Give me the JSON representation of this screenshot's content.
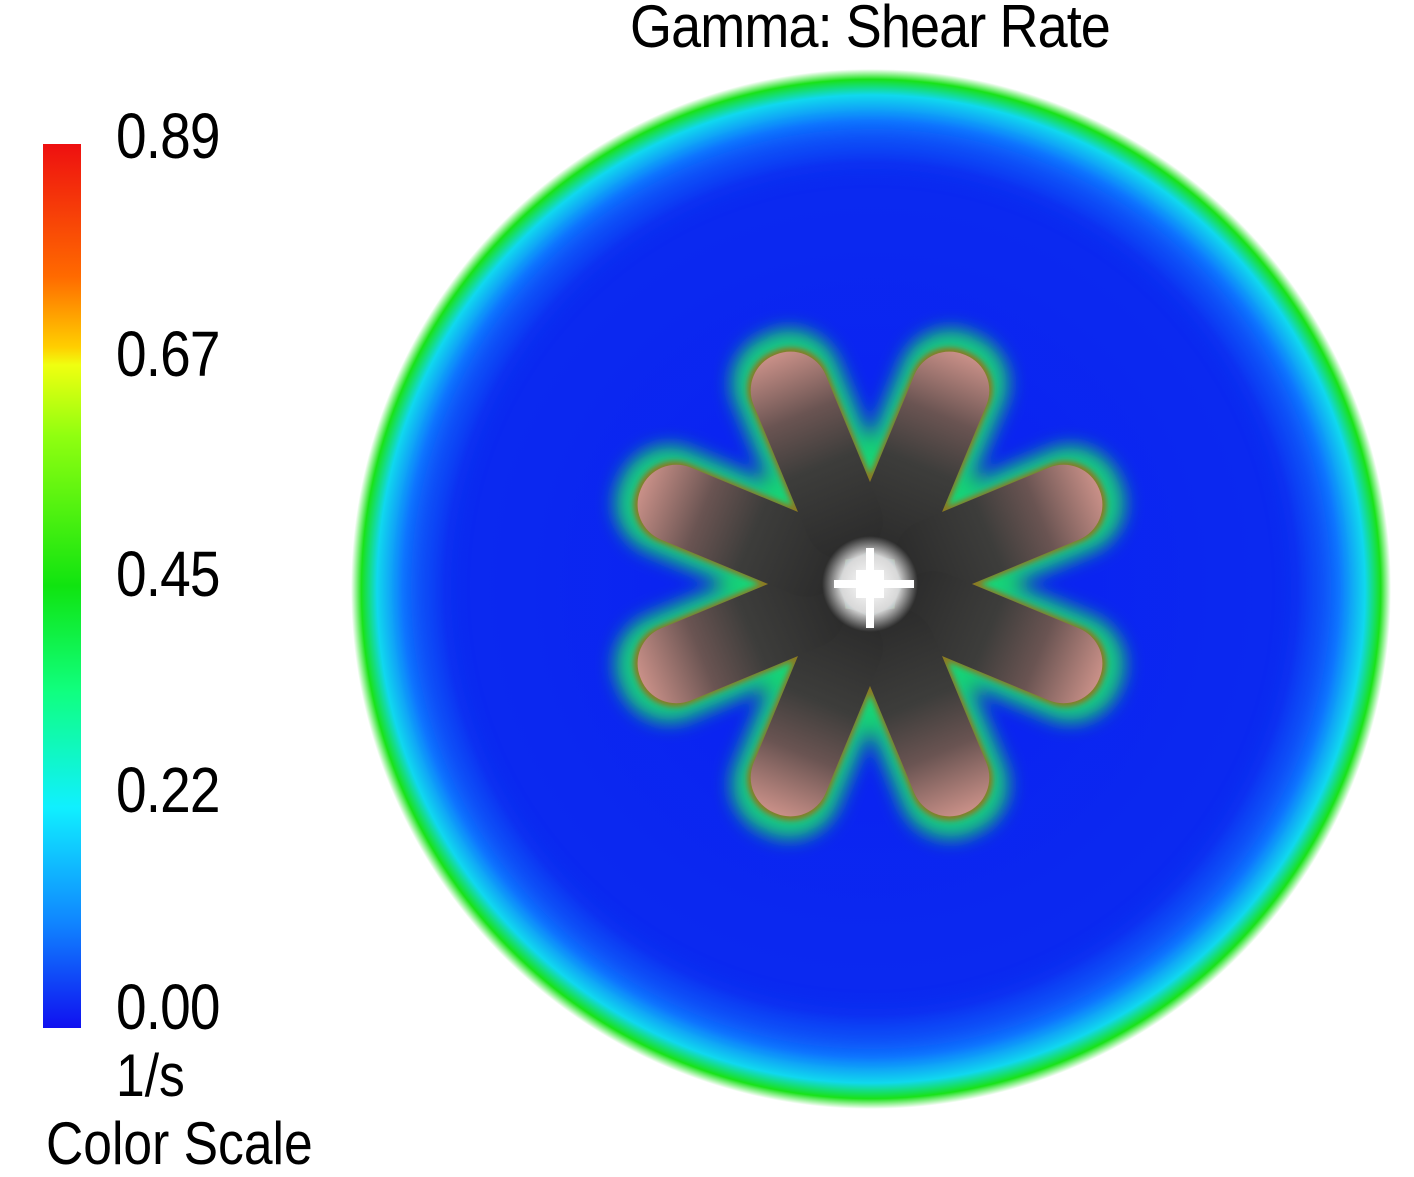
{
  "title": "Gamma: Shear Rate",
  "color_scale": {
    "ticks": [
      "0.89",
      "0.67",
      "0.45",
      "0.22",
      "0.00"
    ],
    "unit": "1/s",
    "caption": "Color Scale",
    "colors": {
      "max": "#ee1010",
      "mid": "#10e410",
      "min": "#1010f0"
    }
  },
  "plot": {
    "field_color": "#0a1ef2",
    "wall_color": "#19e219",
    "impeller_blades": 8,
    "impeller_icon": "eight-blade-impeller"
  }
}
